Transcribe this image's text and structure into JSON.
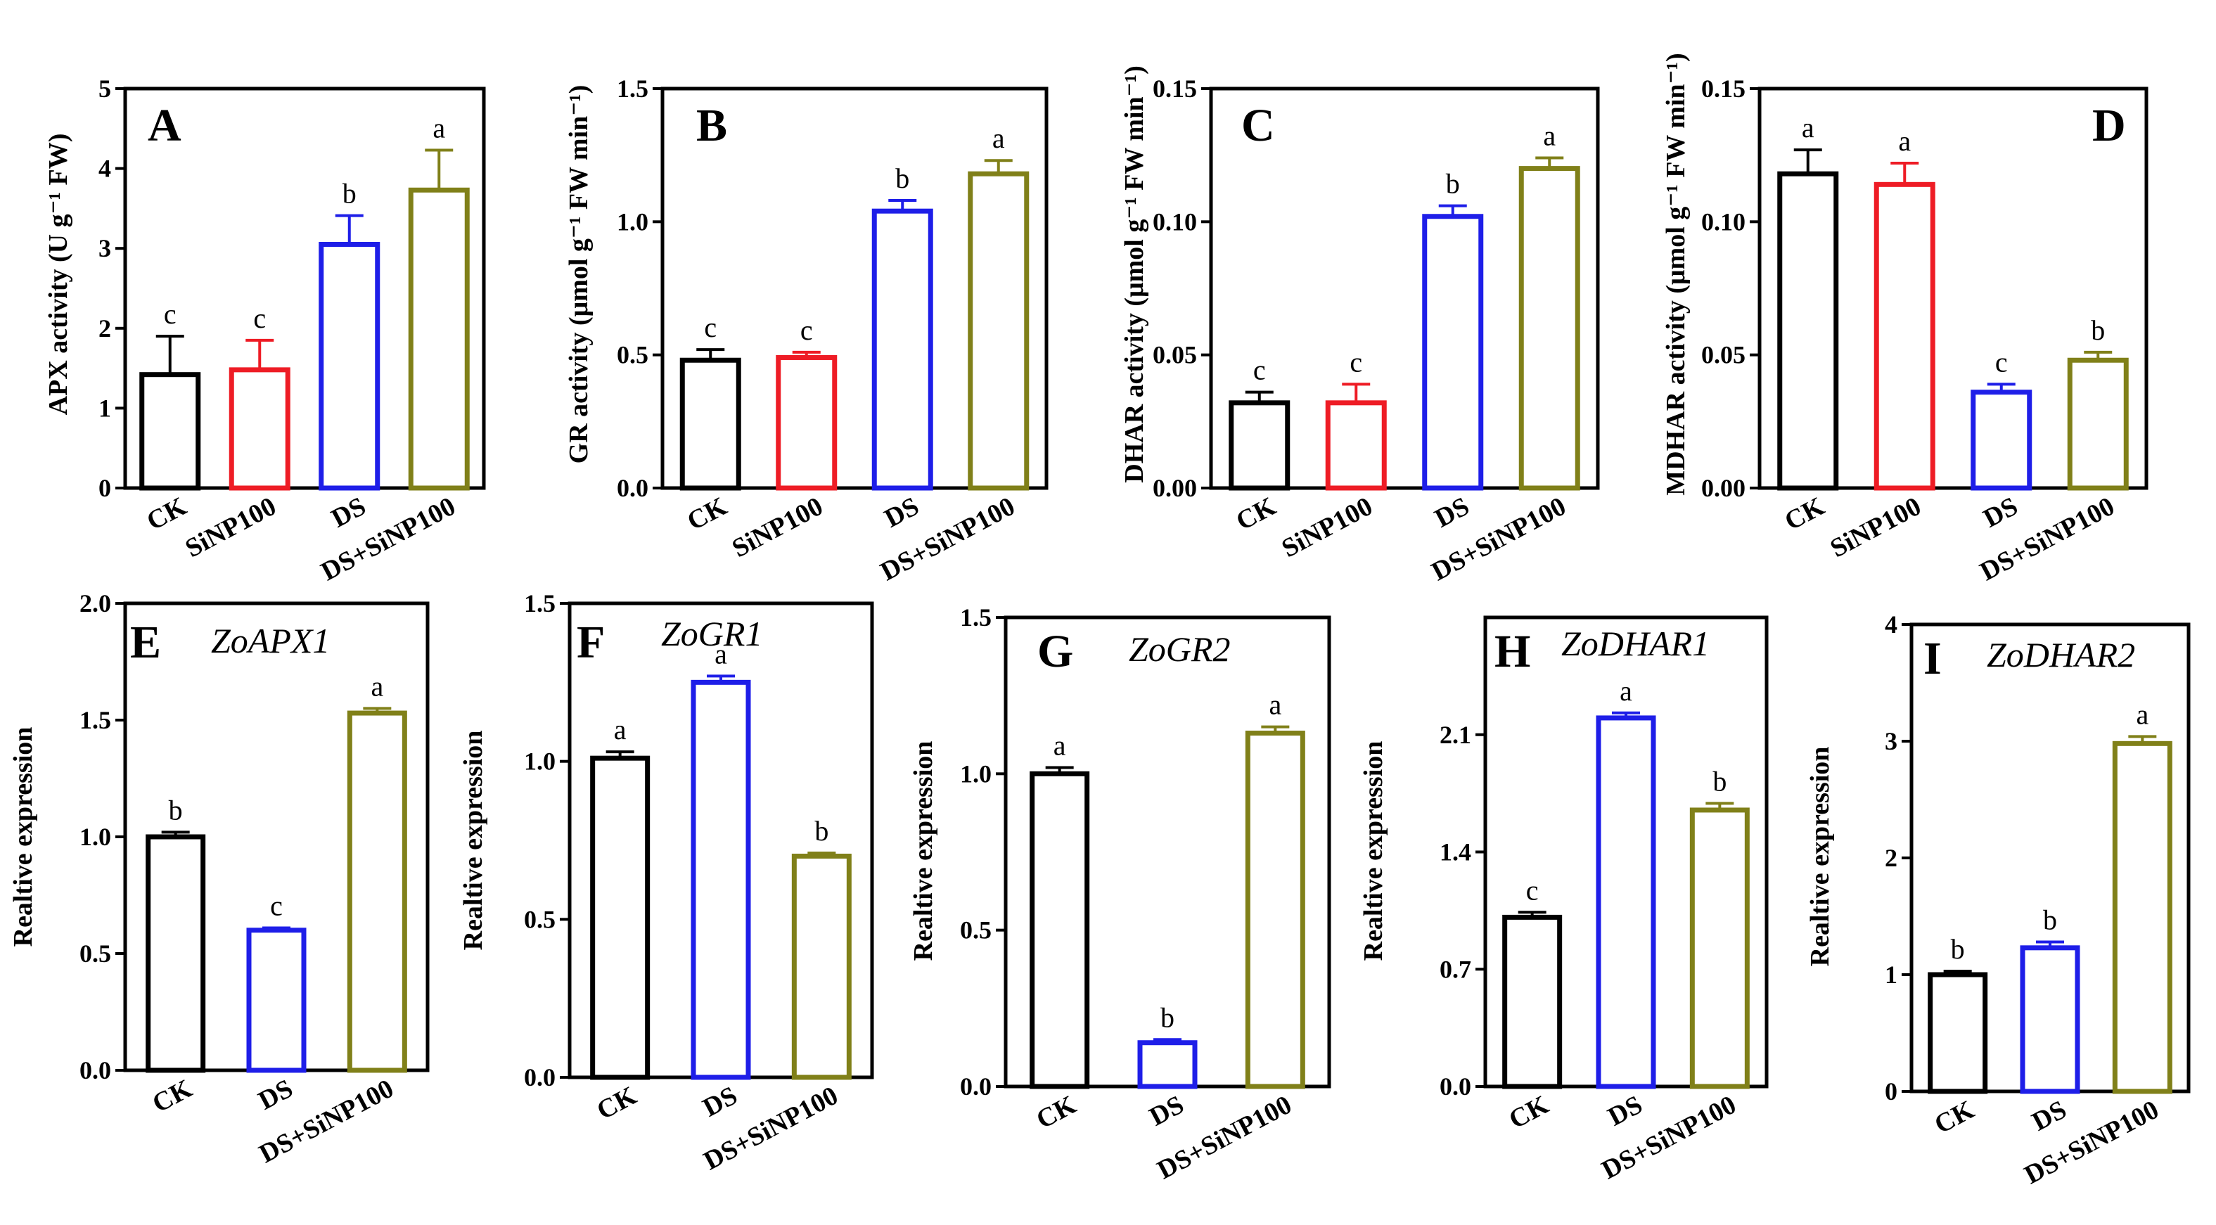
{
  "figure": {
    "colors": {
      "CK": "#000000",
      "SiNP100": "#ee1c25",
      "DS": "#1e1ee8",
      "DS+SiNP100": "#808019"
    }
  },
  "chart_data": [
    {
      "id": "A",
      "type": "bar",
      "panel_letter": "A",
      "gene": "",
      "ylabel": "APX activity (U g⁻¹ FW)",
      "ylim": [
        0,
        5
      ],
      "yticks": [
        "0",
        "1",
        "2",
        "3",
        "4",
        "5"
      ],
      "categories": [
        "CK",
        "SiNP100",
        "DS",
        "DS+SiNP100"
      ],
      "values": [
        1.42,
        1.48,
        3.05,
        3.73
      ],
      "errors": [
        0.48,
        0.37,
        0.36,
        0.5
      ],
      "significance": [
        "c",
        "c",
        "b",
        "a"
      ]
    },
    {
      "id": "B",
      "type": "bar",
      "panel_letter": "B",
      "gene": "",
      "ylabel": "GR activity (μmol g⁻¹ FW min⁻¹)",
      "ylim": [
        0,
        1.5
      ],
      "yticks": [
        "0.0",
        "0.5",
        "1.0",
        "1.5"
      ],
      "categories": [
        "CK",
        "SiNP100",
        "DS",
        "DS+SiNP100"
      ],
      "values": [
        0.48,
        0.49,
        1.04,
        1.18
      ],
      "errors": [
        0.04,
        0.02,
        0.04,
        0.05
      ],
      "significance": [
        "c",
        "c",
        "b",
        "a"
      ]
    },
    {
      "id": "C",
      "type": "bar",
      "panel_letter": "C",
      "gene": "",
      "ylabel": "DHAR activity (μmol g⁻¹ FW min⁻¹)",
      "ylim": [
        0,
        0.15
      ],
      "yticks": [
        "0.00",
        "0.05",
        "0.10",
        "0.15"
      ],
      "categories": [
        "CK",
        "SiNP100",
        "DS",
        "DS+SiNP100"
      ],
      "values": [
        0.032,
        0.032,
        0.102,
        0.12
      ],
      "errors": [
        0.004,
        0.007,
        0.004,
        0.004
      ],
      "significance": [
        "c",
        "c",
        "b",
        "a"
      ]
    },
    {
      "id": "D",
      "type": "bar",
      "panel_letter": "D",
      "gene": "",
      "ylabel": "MDHAR activity (μmol g⁻¹ FW min⁻¹)",
      "ylim": [
        0,
        0.15
      ],
      "yticks": [
        "0.00",
        "0.05",
        "0.10",
        "0.15"
      ],
      "categories": [
        "CK",
        "SiNP100",
        "DS",
        "DS+SiNP100"
      ],
      "values": [
        0.118,
        0.114,
        0.036,
        0.048
      ],
      "errors": [
        0.009,
        0.008,
        0.003,
        0.003
      ],
      "significance": [
        "a",
        "a",
        "c",
        "b"
      ]
    },
    {
      "id": "E",
      "type": "bar",
      "panel_letter": "E",
      "gene": "ZoAPX1",
      "ylabel": "Realtive expression",
      "ylim": [
        0,
        2.0
      ],
      "yticks": [
        "0.0",
        "0.5",
        "1.0",
        "1.5",
        "2.0"
      ],
      "categories": [
        "CK",
        "DS",
        "DS+SiNP100"
      ],
      "values": [
        1.0,
        0.6,
        1.53
      ],
      "errors": [
        0.02,
        0.01,
        0.02
      ],
      "significance": [
        "b",
        "c",
        "a"
      ]
    },
    {
      "id": "F",
      "type": "bar",
      "panel_letter": "F",
      "gene": "ZoGR1",
      "ylabel": "Realtive expression",
      "ylim": [
        0,
        1.5
      ],
      "yticks": [
        "0.0",
        "0.5",
        "1.0",
        "1.5"
      ],
      "categories": [
        "CK",
        "DS",
        "DS+SiNP100"
      ],
      "values": [
        1.01,
        1.25,
        0.7
      ],
      "errors": [
        0.02,
        0.02,
        0.01
      ],
      "significance": [
        "a",
        "a",
        "b"
      ]
    },
    {
      "id": "G",
      "type": "bar",
      "panel_letter": "G",
      "gene": "ZoGR2",
      "ylabel": "Realtive expression",
      "ylim": [
        0,
        1.5
      ],
      "yticks": [
        "0.0",
        "0.5",
        "1.0",
        "1.5"
      ],
      "categories": [
        "CK",
        "DS",
        "DS+SiNP100"
      ],
      "values": [
        1.0,
        0.14,
        1.13
      ],
      "errors": [
        0.02,
        0.01,
        0.02
      ],
      "significance": [
        "a",
        "b",
        "a"
      ]
    },
    {
      "id": "H",
      "type": "bar",
      "panel_letter": "H",
      "gene": "ZoDHAR1",
      "ylabel": "Realtive expression",
      "ylim": [
        0,
        2.8
      ],
      "yticks": [
        "0.0",
        "0.7",
        "1.4",
        "2.1"
      ],
      "categories": [
        "CK",
        "DS",
        "DS+SiNP100"
      ],
      "values": [
        1.01,
        2.2,
        1.65
      ],
      "errors": [
        0.03,
        0.03,
        0.04
      ],
      "significance": [
        "c",
        "a",
        "b"
      ]
    },
    {
      "id": "I",
      "type": "bar",
      "panel_letter": "I",
      "gene": "ZoDHAR2",
      "ylabel": "Realtive expression",
      "ylim": [
        0,
        4
      ],
      "yticks": [
        "0",
        "1",
        "2",
        "3",
        "4"
      ],
      "categories": [
        "CK",
        "DS",
        "DS+SiNP100"
      ],
      "values": [
        1.0,
        1.23,
        2.98
      ],
      "errors": [
        0.03,
        0.05,
        0.06
      ],
      "significance": [
        "b",
        "b",
        "a"
      ]
    }
  ]
}
